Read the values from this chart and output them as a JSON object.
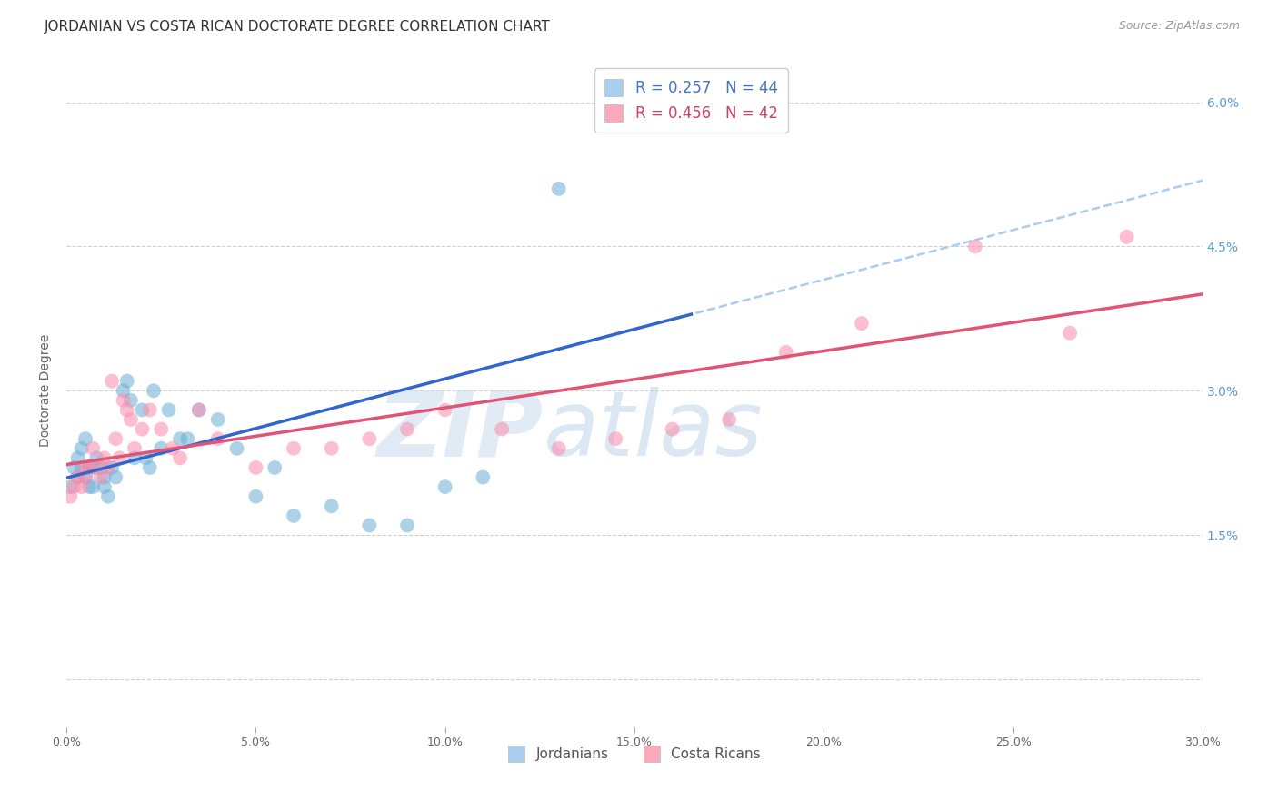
{
  "title": "JORDANIAN VS COSTA RICAN DOCTORATE DEGREE CORRELATION CHART",
  "source": "Source: ZipAtlas.com",
  "ylabel": "Doctorate Degree",
  "xlabel": "",
  "xlim": [
    0.0,
    0.3
  ],
  "ylim": [
    -0.005,
    0.065
  ],
  "xticks": [
    0.0,
    0.05,
    0.1,
    0.15,
    0.2,
    0.25,
    0.3
  ],
  "yticks_vals": [
    0.0,
    0.015,
    0.03,
    0.045,
    0.06
  ],
  "yticks_right_labels": [
    "",
    "1.5%",
    "3.0%",
    "4.5%",
    "6.0%"
  ],
  "xtick_labels": [
    "0.0%",
    "5.0%",
    "10.0%",
    "15.0%",
    "20.0%",
    "25.0%",
    "30.0%"
  ],
  "watermark_zip": "ZIP",
  "watermark_atlas": "atlas",
  "legend_entries": [
    {
      "label": "R = 0.257   N = 44",
      "color": "#A8CEF0"
    },
    {
      "label": "R = 0.456   N = 42",
      "color": "#F8AABB"
    }
  ],
  "legend_bottom": [
    {
      "label": "Jordanians",
      "color": "#A8CEF0"
    },
    {
      "label": "Costa Ricans",
      "color": "#F8AABB"
    }
  ],
  "jordanian_x": [
    0.001,
    0.002,
    0.003,
    0.003,
    0.004,
    0.004,
    0.005,
    0.005,
    0.006,
    0.006,
    0.007,
    0.007,
    0.008,
    0.009,
    0.01,
    0.01,
    0.011,
    0.012,
    0.013,
    0.015,
    0.016,
    0.017,
    0.018,
    0.02,
    0.021,
    0.022,
    0.023,
    0.025,
    0.027,
    0.03,
    0.032,
    0.035,
    0.04,
    0.045,
    0.05,
    0.055,
    0.06,
    0.07,
    0.08,
    0.09,
    0.1,
    0.11,
    0.13,
    0.16
  ],
  "jordanian_y": [
    0.02,
    0.022,
    0.023,
    0.021,
    0.022,
    0.024,
    0.021,
    0.025,
    0.02,
    0.022,
    0.022,
    0.02,
    0.023,
    0.022,
    0.021,
    0.02,
    0.019,
    0.022,
    0.021,
    0.03,
    0.031,
    0.029,
    0.023,
    0.028,
    0.023,
    0.022,
    0.03,
    0.024,
    0.028,
    0.025,
    0.025,
    0.028,
    0.027,
    0.024,
    0.019,
    0.022,
    0.017,
    0.018,
    0.016,
    0.016,
    0.02,
    0.021,
    0.051,
    0.06
  ],
  "costa_rican_x": [
    0.001,
    0.002,
    0.003,
    0.004,
    0.005,
    0.005,
    0.006,
    0.007,
    0.008,
    0.009,
    0.01,
    0.011,
    0.012,
    0.013,
    0.014,
    0.015,
    0.016,
    0.017,
    0.018,
    0.02,
    0.022,
    0.025,
    0.028,
    0.03,
    0.035,
    0.04,
    0.05,
    0.06,
    0.07,
    0.08,
    0.09,
    0.1,
    0.115,
    0.13,
    0.145,
    0.16,
    0.175,
    0.19,
    0.21,
    0.24,
    0.265,
    0.28
  ],
  "costa_rican_y": [
    0.019,
    0.02,
    0.021,
    0.02,
    0.021,
    0.022,
    0.022,
    0.024,
    0.022,
    0.021,
    0.023,
    0.022,
    0.031,
    0.025,
    0.023,
    0.029,
    0.028,
    0.027,
    0.024,
    0.026,
    0.028,
    0.026,
    0.024,
    0.023,
    0.028,
    0.025,
    0.022,
    0.024,
    0.024,
    0.025,
    0.026,
    0.028,
    0.026,
    0.024,
    0.025,
    0.026,
    0.027,
    0.034,
    0.037,
    0.045,
    0.036,
    0.046
  ],
  "blue_scatter_color": "#6BAED6",
  "pink_scatter_color": "#FC8BAB",
  "blue_line_color": "#3366CC",
  "pink_line_color": "#E05575",
  "blue_dash_color": "#AACCEE",
  "grid_color": "#CCCCCC",
  "background_color": "#FFFFFF",
  "title_fontsize": 11,
  "axis_label_fontsize": 10,
  "tick_fontsize": 9,
  "right_tick_color": "#5B9BD5"
}
